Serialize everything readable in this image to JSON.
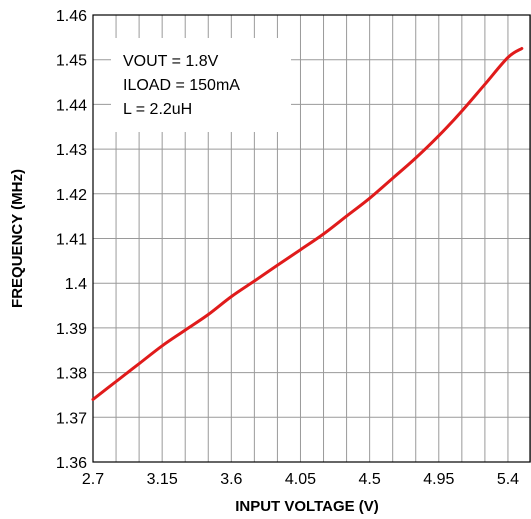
{
  "chart_data": {
    "type": "line",
    "title": "",
    "xlabel": "INPUT VOLTAGE (V)",
    "ylabel": "FREQUENCY (MHz)",
    "xlim": [
      2.7,
      5.55
    ],
    "ylim": [
      1.36,
      1.46
    ],
    "x_ticks": [
      "2.7",
      "3.15",
      "3.6",
      "4.05",
      "4.5",
      "4.95",
      "5.4"
    ],
    "y_ticks": [
      "1.36",
      "1.37",
      "1.38",
      "1.39",
      "1.4",
      "1.41",
      "1.42",
      "1.43",
      "1.44",
      "1.45",
      "1.46"
    ],
    "grid": true,
    "annotations": [
      "VOUT = 1.8V",
      "ILOAD = 150mA",
      "L = 2.2uH"
    ],
    "series_color": "#e01b1b",
    "series": [
      {
        "x": [
          2.7,
          2.85,
          3.0,
          3.15,
          3.3,
          3.45,
          3.6,
          3.75,
          3.9,
          4.05,
          4.2,
          4.35,
          4.5,
          4.65,
          4.8,
          4.95,
          5.1,
          5.25,
          5.4,
          5.49
        ],
        "y": [
          1.374,
          1.378,
          1.382,
          1.386,
          1.3895,
          1.393,
          1.397,
          1.4005,
          1.404,
          1.4075,
          1.411,
          1.415,
          1.419,
          1.4235,
          1.428,
          1.433,
          1.4385,
          1.4445,
          1.4505,
          1.4525
        ]
      }
    ]
  }
}
